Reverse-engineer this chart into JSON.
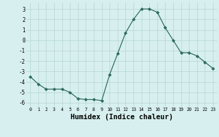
{
  "x": [
    0,
    1,
    2,
    3,
    4,
    5,
    6,
    7,
    8,
    9,
    10,
    11,
    12,
    13,
    14,
    15,
    16,
    17,
    18,
    19,
    20,
    21,
    22,
    23
  ],
  "y": [
    -3.5,
    -4.2,
    -4.7,
    -4.7,
    -4.7,
    -5.0,
    -5.6,
    -5.7,
    -5.7,
    -5.8,
    -3.3,
    -1.3,
    0.7,
    2.0,
    3.0,
    3.0,
    2.7,
    1.2,
    0.0,
    -1.2,
    -1.2,
    -1.5,
    -2.1,
    -2.7
  ],
  "line_color": "#2e6b5e",
  "marker": "D",
  "marker_size": 2.2,
  "bg_color": "#d7f0ef",
  "grid_color": "#b8d8d4",
  "xlabel": "Humidex (Indice chaleur)",
  "xlabel_fontsize": 7.5,
  "yticks": [
    -6,
    -5,
    -4,
    -3,
    -2,
    -1,
    0,
    1,
    2,
    3
  ],
  "xticks": [
    0,
    1,
    2,
    3,
    4,
    5,
    6,
    7,
    8,
    9,
    10,
    11,
    12,
    13,
    14,
    15,
    16,
    17,
    18,
    19,
    20,
    21,
    22,
    23
  ],
  "xlim": [
    -0.5,
    23.5
  ],
  "ylim": [
    -6.4,
    3.6
  ]
}
